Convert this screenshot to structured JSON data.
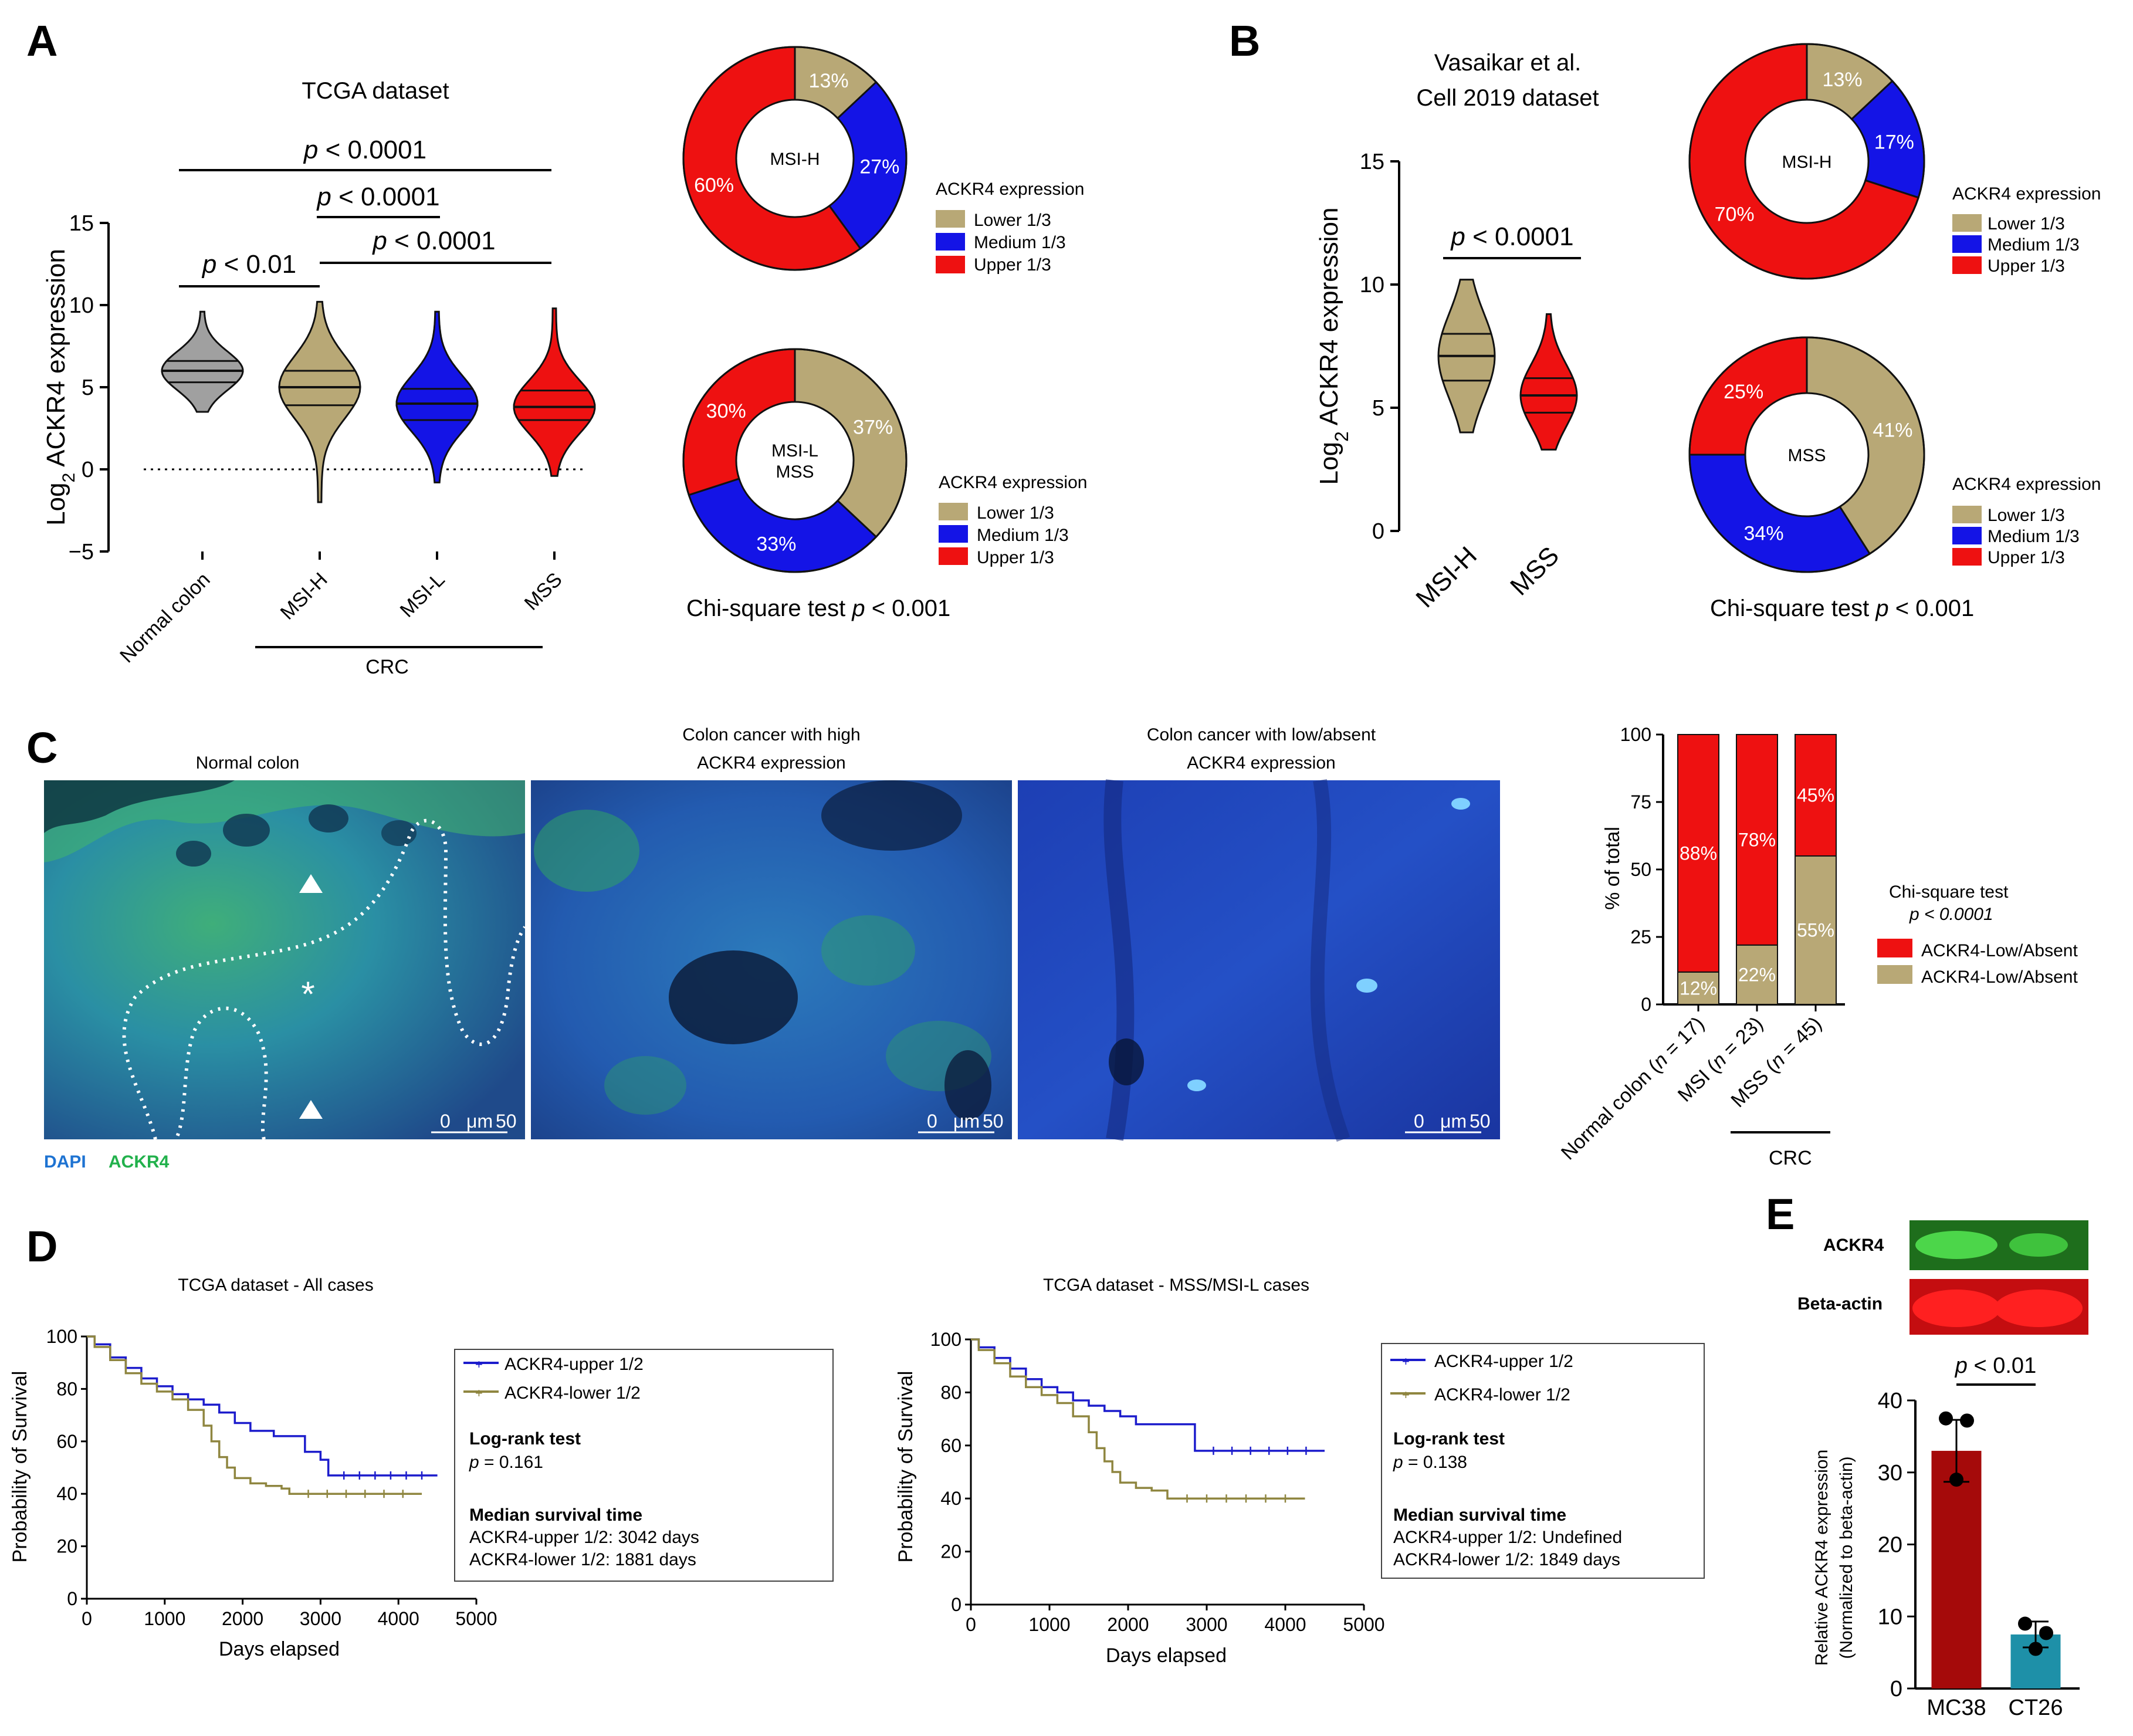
{
  "colors": {
    "gold": "#b8a876",
    "blue": "#1414e6",
    "red": "#ee1111",
    "grey": "#a0a0a0",
    "km_upper": "#1c1ccc",
    "km_lower": "#8f8640",
    "mc38": "#a50a0a",
    "ct26": "#1e90a8"
  },
  "panel_labels": {
    "A": "A",
    "B": "B",
    "C": "C",
    "D": "D",
    "E": "E"
  },
  "panelA": {
    "title": "TCGA dataset",
    "ylabel": "ACKR4 expression",
    "ylabel_prefix": "Log",
    "ylabel_sub": "2",
    "crc_label": "CRC",
    "p_values": [
      "p < 0.0001",
      "p < 0.0001",
      "p < 0.01",
      "p < 0.0001"
    ],
    "legend_title": "ACKR4 expression",
    "legend_items": [
      "Lower 1/3",
      "Medium 1/3",
      "Upper 1/3"
    ],
    "chi_square": "Chi-square test p < 0.001",
    "donut1_label": "MSI-H",
    "donut2_label_l1": "MSI-L",
    "donut2_label_l2": "MSS"
  },
  "panelB": {
    "title_l1": "Vasaikar et al.",
    "title_l2": "Cell 2019 dataset",
    "ylabel": "ACKR4 expression",
    "ylabel_prefix": "Log",
    "ylabel_sub": "2",
    "p_value": "p < 0.0001",
    "legend_title": "ACKR4 expression",
    "legend_items": [
      "Lower 1/3",
      "Medium 1/3",
      "Upper 1/3"
    ],
    "chi_square": "Chi-square test p < 0.001",
    "donut1_label": "MSI-H",
    "donut2_label": "MSS"
  },
  "panelC": {
    "image_titles": [
      "Normal colon",
      "Colon cancer with high",
      "ACKR4 expression",
      "Colon cancer with low/absent",
      "ACKR4 expression"
    ],
    "stain_labels": [
      "DAPI",
      "ACKR4"
    ],
    "scale_labels": [
      "0",
      "μm",
      "50"
    ],
    "ylabel": "% of total",
    "crc_label": "CRC",
    "chi_title": "Chi-square test",
    "chi_p": "p < 0.0001",
    "legend_items": [
      "ACKR4-Low/Absent",
      "ACKR4-Low/Absent"
    ]
  },
  "panelD": {
    "titles": [
      "TCGA dataset - All cases",
      "TCGA dataset - MSS/MSI-L cases"
    ],
    "ylabel": "Probability of Survival",
    "xlabel": "Days elapsed",
    "legend_items": [
      "ACKR4-upper 1/2",
      "ACKR4-lower 1/2"
    ],
    "logrank_title": "Log-rank test",
    "p_values": [
      "p = 0.161",
      "p = 0.138"
    ],
    "median_title": "Median survival time",
    "median_lines": [
      [
        "ACKR4-upper 1/2: 3042 days",
        "ACKR4-lower 1/2: 1881 days"
      ],
      [
        "ACKR4-upper 1/2: Undefined",
        "ACKR4-lower 1/2: 1849 days"
      ]
    ]
  },
  "panelE": {
    "blot_labels": [
      "ACKR4",
      "Beta-actin"
    ],
    "ylabel_l1": "Relative ACKR4 expression",
    "ylabel_l2": "(Normalized to beta-actin)",
    "p_value": "p < 0.01"
  },
  "chart_data": [
    {
      "id": "A-violin",
      "type": "violin",
      "title": "TCGA dataset",
      "categories": [
        "Normal colon",
        "MSI-H",
        "MSI-L",
        "MSS"
      ],
      "ylabel": "Log2 ACKR4 expression",
      "ylim": [
        -5,
        15
      ],
      "yticks": [
        -5,
        0,
        5,
        10,
        15
      ],
      "series": [
        {
          "name": "Normal colon",
          "min": 3.5,
          "q1": 5.3,
          "median": 6.0,
          "q3": 6.6,
          "max": 9.6
        },
        {
          "name": "MSI-H",
          "min": -2.0,
          "q1": 3.9,
          "median": 5.0,
          "q3": 6.0,
          "max": 10.2
        },
        {
          "name": "MSI-L",
          "min": -0.8,
          "q1": 3.0,
          "median": 4.0,
          "q3": 4.9,
          "max": 9.6
        },
        {
          "name": "MSS",
          "min": -0.4,
          "q1": 3.0,
          "median": 3.8,
          "q3": 4.8,
          "max": 9.8
        }
      ],
      "reference_line": 0,
      "comparisons": [
        {
          "from": "Normal colon",
          "to": "MSS",
          "label": "p < 0.0001"
        },
        {
          "from": "MSI-H",
          "to": "MSI-L",
          "label": "p < 0.0001"
        },
        {
          "from": "Normal colon",
          "to": "MSI-H",
          "label": "p < 0.01"
        },
        {
          "from": "MSI-H",
          "to": "MSS",
          "label": "p < 0.0001"
        }
      ]
    },
    {
      "id": "A-donut-MSI-H",
      "type": "pie",
      "center_label": "MSI-H",
      "labels": [
        "Lower 1/3",
        "Medium 1/3",
        "Upper 1/3"
      ],
      "values": [
        13,
        27,
        60
      ],
      "value_labels": [
        "13%",
        "27%",
        "60%"
      ]
    },
    {
      "id": "A-donut-MSI-L-MSS",
      "type": "pie",
      "center_label": "MSI-L MSS",
      "labels": [
        "Lower 1/3",
        "Medium 1/3",
        "Upper 1/3"
      ],
      "values": [
        37,
        33,
        30
      ],
      "value_labels": [
        "37%",
        "33%",
        "30%"
      ]
    },
    {
      "id": "B-violin",
      "type": "violin",
      "title": "Vasaikar et al. Cell 2019 dataset",
      "categories": [
        "MSI-H",
        "MSS"
      ],
      "ylabel": "Log2 ACKR4 expression",
      "ylim": [
        0,
        15
      ],
      "yticks": [
        0,
        5,
        10,
        15
      ],
      "series": [
        {
          "name": "MSI-H",
          "min": 4.0,
          "q1": 6.1,
          "median": 7.1,
          "q3": 8.0,
          "max": 10.2
        },
        {
          "name": "MSS",
          "min": 3.3,
          "q1": 4.8,
          "median": 5.5,
          "q3": 6.2,
          "max": 8.8
        }
      ],
      "comparisons": [
        {
          "from": "MSI-H",
          "to": "MSS",
          "label": "p < 0.0001"
        }
      ]
    },
    {
      "id": "B-donut-MSI-H",
      "type": "pie",
      "center_label": "MSI-H",
      "labels": [
        "Lower 1/3",
        "Medium 1/3",
        "Upper 1/3"
      ],
      "values": [
        13,
        17,
        70
      ],
      "value_labels": [
        "13%",
        "17%",
        "70%"
      ]
    },
    {
      "id": "B-donut-MSS",
      "type": "pie",
      "center_label": "MSS",
      "labels": [
        "Lower 1/3",
        "Medium 1/3",
        "Upper 1/3"
      ],
      "values": [
        41,
        34,
        25
      ],
      "value_labels": [
        "41%",
        "34%",
        "25%"
      ]
    },
    {
      "id": "C-stacked-bar",
      "type": "bar",
      "stacked": true,
      "categories": [
        "Normal colon (n = 17)",
        "MSI (n = 23)",
        "MSS (n = 45)"
      ],
      "category_parts": [
        [
          "Normal colon (",
          "n",
          " = 17)"
        ],
        [
          "MSI (",
          "n",
          " = 23)"
        ],
        [
          "MSS (",
          "n",
          " = 45)"
        ]
      ],
      "ylabel": "% of total",
      "ylim": [
        0,
        100
      ],
      "yticks": [
        0,
        25,
        50,
        75,
        100
      ],
      "series": [
        {
          "name": "ACKR4-Low/Absent",
          "color": "#b8a876",
          "values": [
            12,
            22,
            55
          ],
          "labels": [
            "12%",
            "22%",
            "55%"
          ]
        },
        {
          "name": "ACKR4-Low/Absent",
          "color": "#ee1111",
          "values": [
            88,
            78,
            45
          ],
          "labels": [
            "88%",
            "78%",
            "45%"
          ]
        }
      ]
    },
    {
      "id": "D-km-all",
      "type": "line",
      "title": "TCGA dataset - All cases",
      "xlabel": "Days elapsed",
      "ylabel": "Probability of Survival",
      "xlim": [
        0,
        5000
      ],
      "ylim": [
        0,
        100
      ],
      "xticks": [
        0,
        1000,
        2000,
        3000,
        4000,
        5000
      ],
      "yticks": [
        0,
        20,
        40,
        60,
        80,
        100
      ],
      "series": [
        {
          "name": "ACKR4-upper 1/2",
          "x": [
            0,
            100,
            300,
            500,
            700,
            900,
            1100,
            1300,
            1500,
            1700,
            1900,
            2100,
            2400,
            2700,
            2800,
            3000,
            3100,
            4500
          ],
          "y": [
            100,
            97,
            92,
            88,
            84,
            81,
            78,
            76,
            74,
            71,
            67,
            64,
            62,
            62,
            56,
            53,
            47,
            47
          ]
        },
        {
          "name": "ACKR4-lower 1/2",
          "x": [
            0,
            100,
            300,
            500,
            700,
            900,
            1100,
            1300,
            1500,
            1600,
            1700,
            1800,
            1900,
            2100,
            2300,
            2500,
            2600,
            4300
          ],
          "y": [
            100,
            96,
            91,
            86,
            82,
            79,
            76,
            72,
            66,
            60,
            54,
            50,
            46,
            44,
            43,
            42,
            40,
            40
          ]
        }
      ]
    },
    {
      "id": "D-km-mss",
      "type": "line",
      "title": "TCGA dataset - MSS/MSI-L cases",
      "xlabel": "Days elapsed",
      "ylabel": "Probability of Survival",
      "xlim": [
        0,
        5000
      ],
      "ylim": [
        0,
        100
      ],
      "xticks": [
        0,
        1000,
        2000,
        3000,
        4000,
        5000
      ],
      "yticks": [
        0,
        20,
        40,
        60,
        80,
        100
      ],
      "series": [
        {
          "name": "ACKR4-upper 1/2",
          "x": [
            0,
            100,
            300,
            500,
            700,
            900,
            1100,
            1300,
            1500,
            1700,
            1900,
            2100,
            2400,
            2800,
            2850,
            4500
          ],
          "y": [
            100,
            97,
            93,
            89,
            85,
            82,
            80,
            77,
            75,
            73,
            71,
            68,
            68,
            68,
            58,
            58
          ]
        },
        {
          "name": "ACKR4-lower 1/2",
          "x": [
            0,
            100,
            300,
            500,
            700,
            900,
            1100,
            1300,
            1500,
            1600,
            1700,
            1800,
            1900,
            2100,
            2300,
            2500,
            4250
          ],
          "y": [
            100,
            96,
            91,
            86,
            82,
            79,
            76,
            71,
            65,
            59,
            54,
            50,
            46,
            44,
            43,
            40,
            40
          ]
        }
      ]
    },
    {
      "id": "E-bar",
      "type": "bar",
      "categories": [
        "MC38",
        "CT26"
      ],
      "values": [
        33,
        7.5
      ],
      "errors": [
        4.3,
        1.8
      ],
      "points": [
        [
          37.5,
          37.2,
          29.0
        ],
        [
          9.0,
          7.7,
          5.5
        ]
      ],
      "ylabel": "Relative ACKR4 expression (Normalized to beta-actin)",
      "ylim": [
        0,
        40
      ],
      "yticks": [
        0,
        10,
        20,
        30,
        40
      ],
      "comparison": {
        "label": "p < 0.01"
      }
    }
  ]
}
